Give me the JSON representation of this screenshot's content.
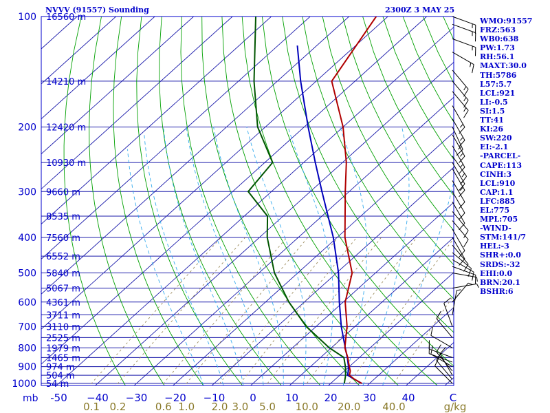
{
  "header": {
    "station_title": "NVVV (91557) Sounding",
    "time_label": "2300Z  3 MAY 25"
  },
  "sidebar": {
    "items": [
      "WMO:91557",
      "FRZ:563",
      "WB0:638",
      "PW:1.73",
      "RH:56.1",
      "MAXT:30.0",
      "TH:5786",
      "L57:5.7",
      "LCL:921",
      "LI:-0.5",
      "SI:1.5",
      "TT:41",
      "KI:26",
      "SW:220",
      "EI:-2.1",
      "-PARCEL-",
      "CAPE:113",
      "CINH:3",
      "LCL:910",
      "CAP:1.1",
      "LFC:885",
      "EL:775",
      "MPL:705",
      "-WIND-",
      "STM:141/7",
      "HEL:-3",
      "SHR+:0.0",
      "SRDS:-32",
      "EHI:0.0",
      "BRN:20.1",
      "BSHR:6"
    ]
  },
  "colors": {
    "frame": "#0000cc",
    "isobar": "#1a1aaa",
    "isotherm": "#1a1aaa",
    "dry_adiabat": "#00a000",
    "moist_adiabat": "#33aaee",
    "mixing_ratio": "#9a8a5a",
    "temperature": "#b00000",
    "dewpoint": "#005500",
    "parcel": "#0000bb",
    "wind_barb": "#000000",
    "mixing_ratio_label": "#8a7a2a"
  },
  "chart_data": {
    "type": "skew-t log-p sounding",
    "title": "NVVV (91557) Sounding",
    "time": "2300Z  3 MAY 25",
    "pressure_axis_unit": "mb",
    "pressure_ticks": [
      100,
      200,
      300,
      400,
      500,
      600,
      700,
      800,
      900,
      1000
    ],
    "temperature_axis_unit": "C",
    "temperature_ticks": [
      -50,
      -40,
      -30,
      -20,
      -10,
      0,
      10,
      20,
      30,
      40
    ],
    "temperature_tick_labels": [
      "-50",
      "−40",
      "−30",
      "−20",
      "−10",
      "0",
      "10",
      "20",
      "30",
      "40"
    ],
    "temperature_range": [
      -50,
      50
    ],
    "pressure_range": [
      100,
      1050
    ],
    "mixing_ratio_unit": "g/kg",
    "mixing_ratio_labels": [
      "0.1",
      "0.2",
      "0.6",
      "1.0",
      "2.0",
      "3.0",
      "5.0",
      "10.0",
      "20.0",
      "40.0"
    ],
    "height_labels": [
      {
        "p": 100,
        "label": "16560 m"
      },
      {
        "p": 150,
        "label": "14210 m"
      },
      {
        "p": 200,
        "label": "12420 m"
      },
      {
        "p": 250,
        "label": "10930 m"
      },
      {
        "p": 300,
        "label": "9660 m"
      },
      {
        "p": 350,
        "label": "8535 m"
      },
      {
        "p": 400,
        "label": "7560 m"
      },
      {
        "p": 450,
        "label": "6552 m"
      },
      {
        "p": 500,
        "label": "5840 m"
      },
      {
        "p": 550,
        "label": "5067 m"
      },
      {
        "p": 600,
        "label": "4361 m"
      },
      {
        "p": 650,
        "label": "3711 m"
      },
      {
        "p": 700,
        "label": "3110 m"
      },
      {
        "p": 750,
        "label": "2525 m"
      },
      {
        "p": 800,
        "label": "1979 m"
      },
      {
        "p": 850,
        "label": "1465 m"
      },
      {
        "p": 900,
        "label": "974 m"
      },
      {
        "p": 950,
        "label": "504 m"
      },
      {
        "p": 1000,
        "label": "54 m"
      }
    ],
    "temperature": [
      {
        "p": 1000,
        "t": 28
      },
      {
        "p": 975,
        "t": 25
      },
      {
        "p": 950,
        "t": 22.5
      },
      {
        "p": 925,
        "t": 21.5
      },
      {
        "p": 900,
        "t": 20
      },
      {
        "p": 850,
        "t": 17
      },
      {
        "p": 800,
        "t": 13.5
      },
      {
        "p": 700,
        "t": 8
      },
      {
        "p": 600,
        "t": 0.5
      },
      {
        "p": 500,
        "t": -6
      },
      {
        "p": 400,
        "t": -18
      },
      {
        "p": 300,
        "t": -31
      },
      {
        "p": 250,
        "t": -39
      },
      {
        "p": 200,
        "t": -50
      },
      {
        "p": 150,
        "t": -66
      },
      {
        "p": 100,
        "t": -73
      }
    ],
    "dewpoint": [
      {
        "p": 1000,
        "t": 23.5
      },
      {
        "p": 950,
        "t": 21.5
      },
      {
        "p": 900,
        "t": 19
      },
      {
        "p": 850,
        "t": 16
      },
      {
        "p": 800,
        "t": 9.5
      },
      {
        "p": 700,
        "t": -2.5
      },
      {
        "p": 600,
        "t": -14
      },
      {
        "p": 500,
        "t": -26
      },
      {
        "p": 400,
        "t": -38
      },
      {
        "p": 350,
        "t": -44
      },
      {
        "p": 300,
        "t": -56
      },
      {
        "p": 250,
        "t": -58
      },
      {
        "p": 200,
        "t": -72
      },
      {
        "p": 150,
        "t": -86
      },
      {
        "p": 100,
        "t": -104
      }
    ],
    "parcel_path": [
      {
        "p": 1000,
        "t": 28
      },
      {
        "p": 975,
        "t": 25
      },
      {
        "p": 950,
        "t": 22
      },
      {
        "p": 925,
        "t": 21
      },
      {
        "p": 900,
        "t": 19.8
      },
      {
        "p": 850,
        "t": 16.9
      },
      {
        "p": 800,
        "t": 13.6
      },
      {
        "p": 700,
        "t": 6.5
      },
      {
        "p": 600,
        "t": -1
      },
      {
        "p": 500,
        "t": -9.5
      },
      {
        "p": 400,
        "t": -21
      },
      {
        "p": 300,
        "t": -37
      },
      {
        "p": 250,
        "t": -47
      },
      {
        "p": 200,
        "t": -59
      },
      {
        "p": 150,
        "t": -74
      },
      {
        "p": 120,
        "t": -85
      }
    ],
    "wind_barbs": [
      {
        "p": 1000,
        "dir": 315,
        "spd": 10
      },
      {
        "p": 975,
        "dir": 320,
        "spd": 10
      },
      {
        "p": 950,
        "dir": 330,
        "spd": 10
      },
      {
        "p": 925,
        "dir": 320,
        "spd": 10
      },
      {
        "p": 900,
        "dir": 300,
        "spd": 10
      },
      {
        "p": 875,
        "dir": 290,
        "spd": 10
      },
      {
        "p": 850,
        "dir": 290,
        "spd": 10
      },
      {
        "p": 800,
        "dir": 300,
        "spd": 10
      },
      {
        "p": 750,
        "dir": 320,
        "spd": 10
      },
      {
        "p": 700,
        "dir": 340,
        "spd": 10
      },
      {
        "p": 650,
        "dir": 10,
        "spd": 5
      },
      {
        "p": 600,
        "dir": 40,
        "spd": 5
      },
      {
        "p": 550,
        "dir": 80,
        "spd": 5
      },
      {
        "p": 500,
        "dir": 100,
        "spd": 5
      },
      {
        "p": 480,
        "dir": 110,
        "spd": 10
      },
      {
        "p": 460,
        "dir": 120,
        "spd": 10
      },
      {
        "p": 440,
        "dir": 130,
        "spd": 10
      },
      {
        "p": 420,
        "dir": 140,
        "spd": 10
      },
      {
        "p": 400,
        "dir": 150,
        "spd": 10
      },
      {
        "p": 380,
        "dir": 150,
        "spd": 10
      },
      {
        "p": 360,
        "dir": 140,
        "spd": 10
      },
      {
        "p": 340,
        "dir": 140,
        "spd": 10
      },
      {
        "p": 320,
        "dir": 150,
        "spd": 10
      },
      {
        "p": 300,
        "dir": 150,
        "spd": 10
      },
      {
        "p": 280,
        "dir": 150,
        "spd": 10
      },
      {
        "p": 260,
        "dir": 150,
        "spd": 15
      },
      {
        "p": 250,
        "dir": 150,
        "spd": 15
      },
      {
        "p": 240,
        "dir": 145,
        "spd": 15
      },
      {
        "p": 225,
        "dir": 150,
        "spd": 15
      },
      {
        "p": 210,
        "dir": 150,
        "spd": 15
      },
      {
        "p": 200,
        "dir": 155,
        "spd": 15
      },
      {
        "p": 190,
        "dir": 150,
        "spd": 15
      },
      {
        "p": 175,
        "dir": 150,
        "spd": 15
      },
      {
        "p": 160,
        "dir": 140,
        "spd": 15
      },
      {
        "p": 150,
        "dir": 140,
        "spd": 15
      },
      {
        "p": 140,
        "dir": 140,
        "spd": 15
      },
      {
        "p": 125,
        "dir": 120,
        "spd": 15
      },
      {
        "p": 115,
        "dir": 110,
        "spd": 15
      },
      {
        "p": 105,
        "dir": 110,
        "spd": 15
      },
      {
        "p": 100,
        "dir": 110,
        "spd": 15
      }
    ]
  }
}
